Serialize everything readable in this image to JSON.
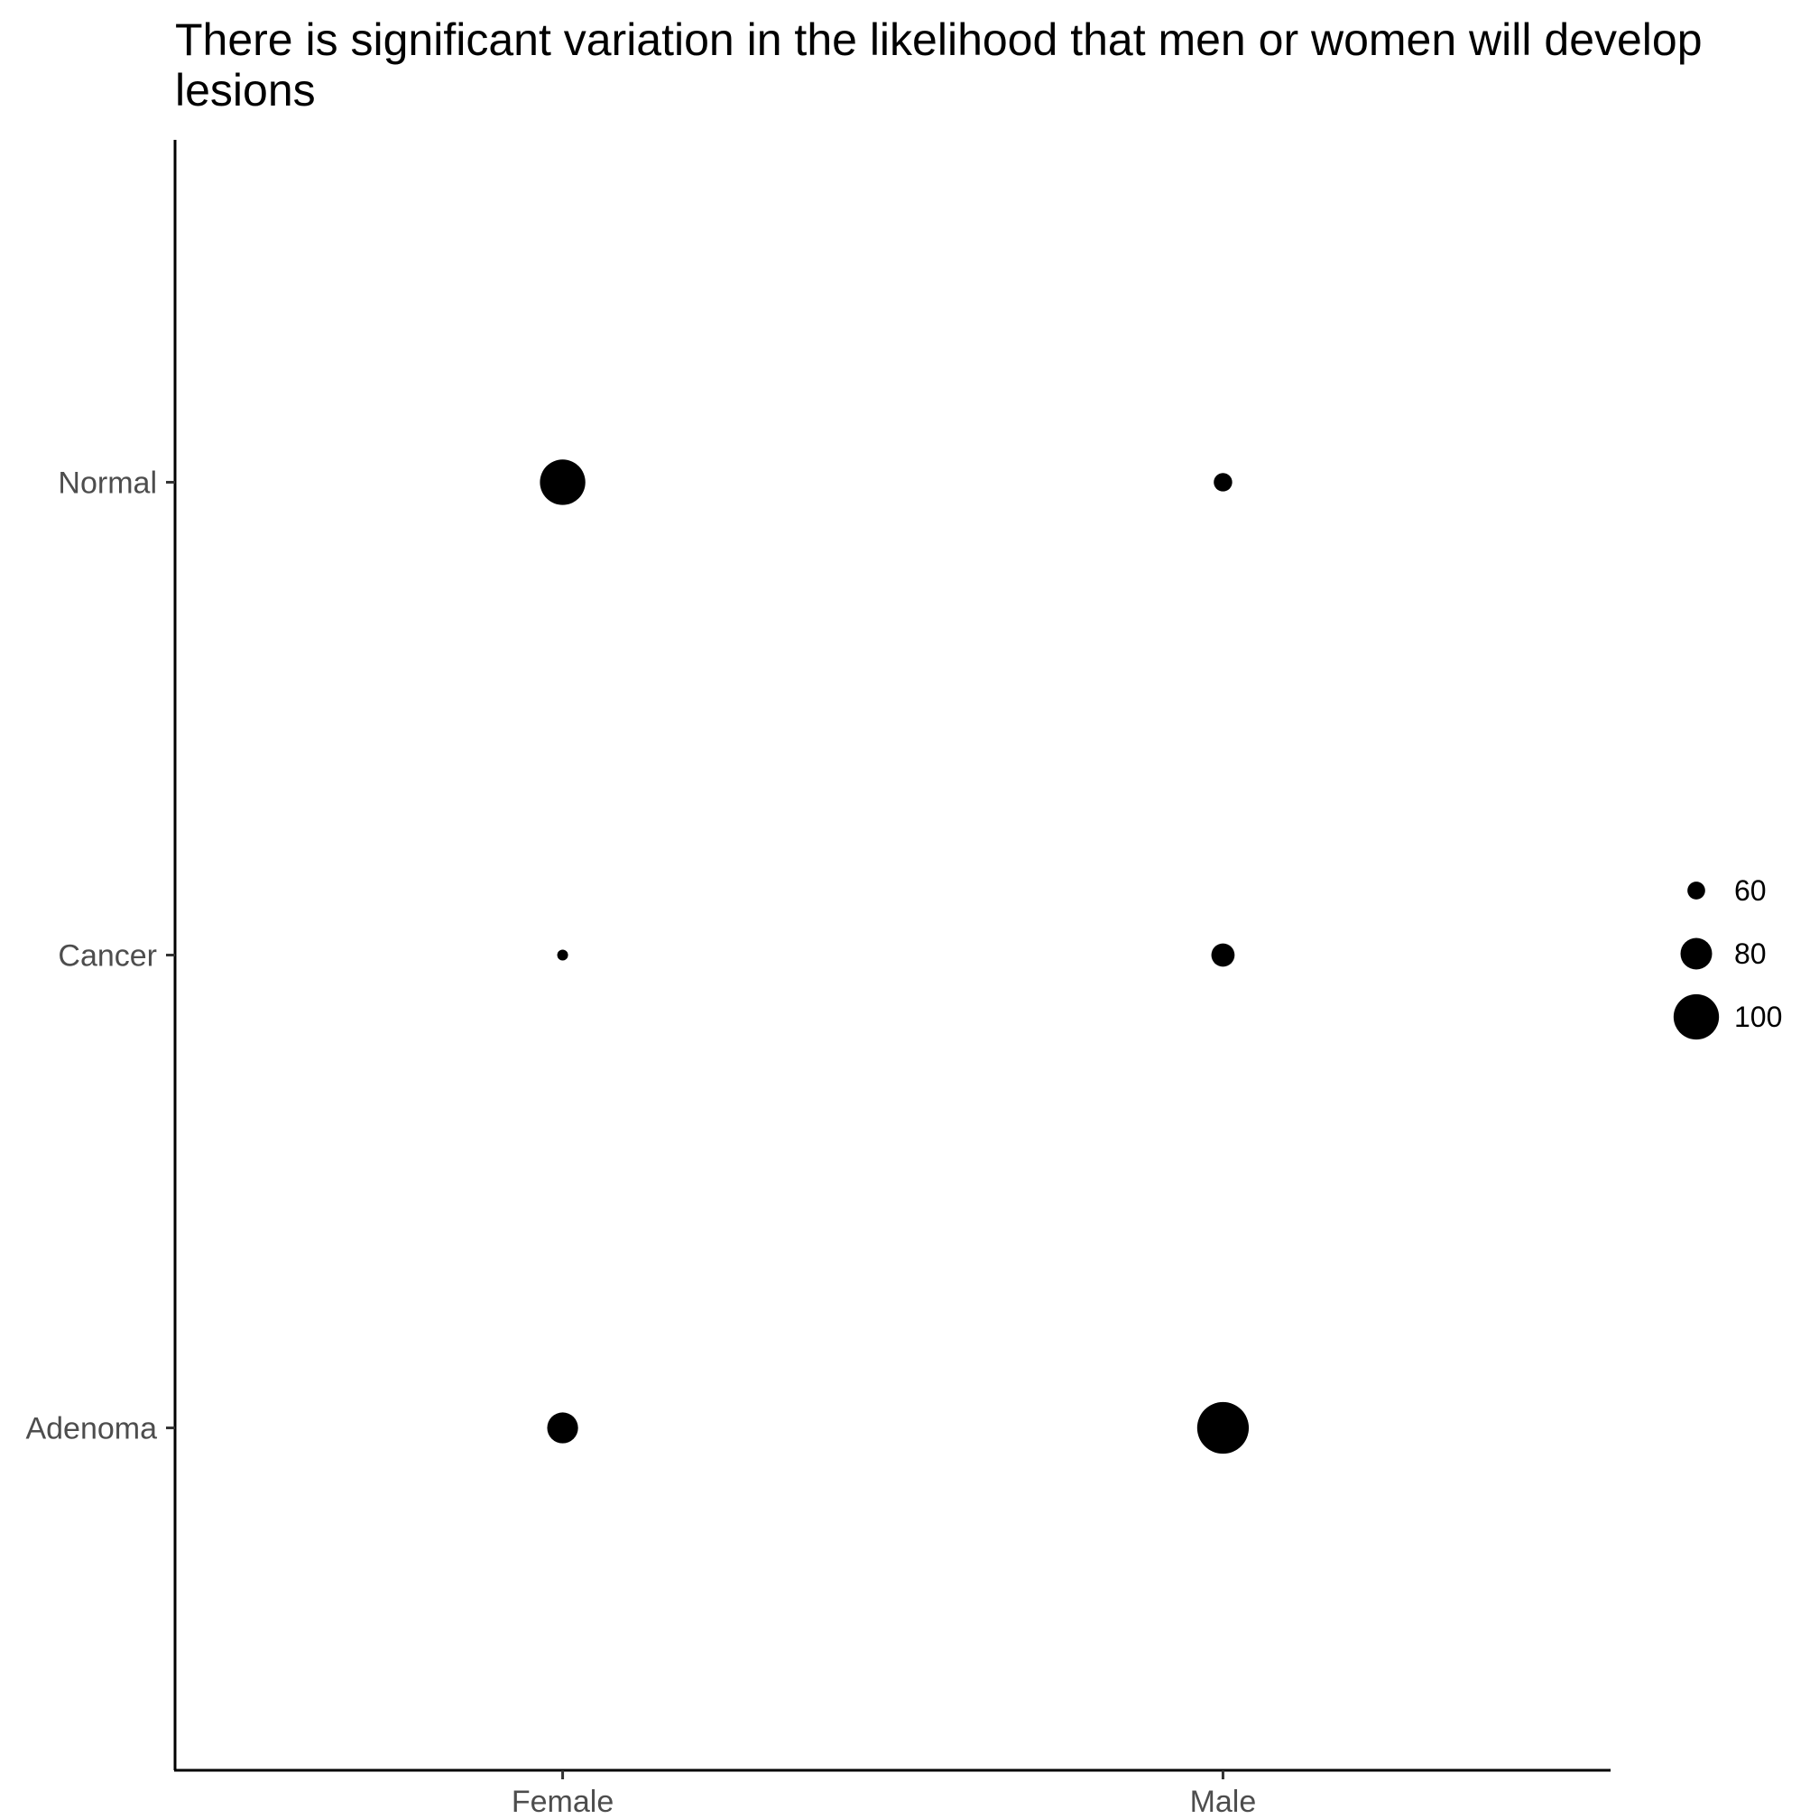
{
  "chart_data": {
    "type": "scatter",
    "title": "There is significant variation in the likelihood that men or women will develop lesions",
    "x_categories": [
      "Female",
      "Male"
    ],
    "y_categories": [
      "Adenoma",
      "Cancer",
      "Normal"
    ],
    "points": [
      {
        "x": "Female",
        "y": "Normal",
        "size": 100
      },
      {
        "x": "Male",
        "y": "Normal",
        "size": 61
      },
      {
        "x": "Female",
        "y": "Cancer",
        "size": 50
      },
      {
        "x": "Male",
        "y": "Cancer",
        "size": 68
      },
      {
        "x": "Female",
        "y": "Adenoma",
        "size": 79
      },
      {
        "x": "Male",
        "y": "Adenoma",
        "size": 109
      }
    ],
    "size_legend": [
      {
        "label": "60",
        "value": 60
      },
      {
        "label": "80",
        "value": 80
      },
      {
        "label": "100",
        "value": 100
      }
    ],
    "size_range": [
      50,
      110
    ],
    "point_color": "#000000",
    "grid": false,
    "legend_position": "right"
  }
}
